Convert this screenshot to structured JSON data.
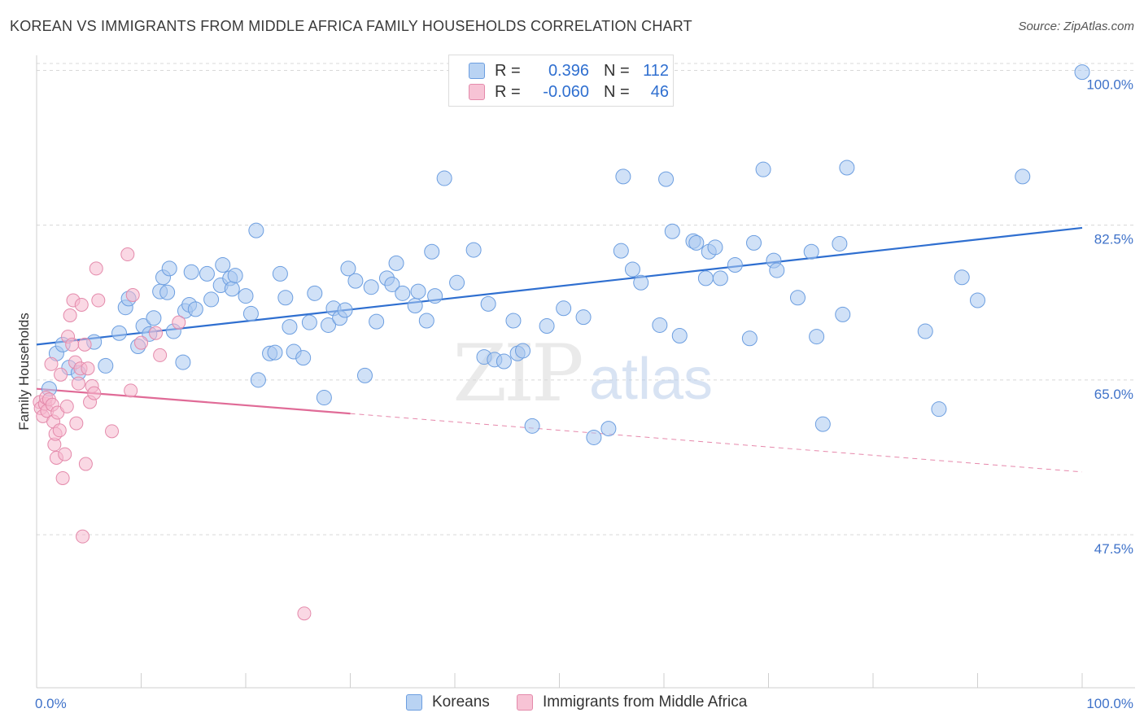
{
  "title": "KOREAN VS IMMIGRANTS FROM MIDDLE AFRICA FAMILY HOUSEHOLDS CORRELATION CHART",
  "source": "Source: ZipAtlas.com",
  "watermark": {
    "zip": "ZIP",
    "atlas": "atlas"
  },
  "legend": {
    "rows": [
      {
        "r_label": "R =",
        "r_value": "0.396",
        "n_label": "N =",
        "n_value": "112"
      },
      {
        "r_label": "R =",
        "r_value": "-0.060",
        "n_label": "N =",
        "n_value": "46"
      }
    ]
  },
  "bottom_legend": [
    "Koreans",
    "Immigrants from Middle Africa"
  ],
  "colors": {
    "blue": "#2f6fd0",
    "pink": "#e06b97",
    "blue_fill": "#a9c8f0",
    "pink_fill": "#f5b8cd",
    "grid": "#d8d8d8"
  },
  "chart_data": {
    "type": "scatter",
    "xlabel": "",
    "ylabel": "Family Households",
    "xlim": [
      0,
      100
    ],
    "ylim": [
      30.2,
      101.7
    ],
    "x_tick_labels": [
      "0.0%",
      "100.0%"
    ],
    "y_ticks": [
      47.5,
      65.0,
      82.5,
      100.0
    ],
    "y_tick_labels": [
      "47.5%",
      "65.0%",
      "82.5%",
      "100.0%"
    ],
    "grid": true,
    "legend_position": "top-center",
    "series": [
      {
        "name": "Koreans",
        "trend": {
          "x0": 0,
          "y0": 69.0,
          "x1": 100,
          "y1": 82.2
        },
        "points": [
          [
            1.2,
            64.0
          ],
          [
            1.9,
            68.0
          ],
          [
            2.5,
            69.0
          ],
          [
            3.1,
            66.4
          ],
          [
            4.0,
            65.8
          ],
          [
            5.5,
            69.3
          ],
          [
            6.6,
            66.6
          ],
          [
            7.9,
            70.3
          ],
          [
            8.5,
            73.2
          ],
          [
            8.8,
            74.2
          ],
          [
            9.7,
            68.8
          ],
          [
            10.2,
            71.1
          ],
          [
            10.8,
            70.2
          ],
          [
            11.2,
            72.0
          ],
          [
            11.8,
            75.0
          ],
          [
            12.1,
            76.6
          ],
          [
            12.5,
            74.9
          ],
          [
            12.7,
            77.6
          ],
          [
            13.1,
            70.5
          ],
          [
            14.0,
            67.0
          ],
          [
            14.2,
            72.8
          ],
          [
            14.6,
            73.5
          ],
          [
            14.8,
            77.2
          ],
          [
            15.2,
            73.0
          ],
          [
            16.3,
            77.0
          ],
          [
            16.7,
            74.1
          ],
          [
            17.6,
            75.7
          ],
          [
            17.8,
            78.0
          ],
          [
            18.5,
            76.5
          ],
          [
            18.7,
            75.3
          ],
          [
            19.0,
            76.8
          ],
          [
            20.0,
            74.5
          ],
          [
            20.5,
            72.5
          ],
          [
            21.0,
            81.9
          ],
          [
            21.2,
            65.0
          ],
          [
            22.3,
            68.0
          ],
          [
            22.8,
            68.1
          ],
          [
            23.3,
            77.0
          ],
          [
            23.8,
            74.3
          ],
          [
            24.2,
            71.0
          ],
          [
            24.6,
            68.2
          ],
          [
            25.5,
            67.5
          ],
          [
            26.1,
            71.5
          ],
          [
            26.6,
            74.8
          ],
          [
            27.5,
            63.0
          ],
          [
            27.9,
            71.2
          ],
          [
            28.4,
            73.1
          ],
          [
            29.0,
            72.0
          ],
          [
            29.5,
            72.9
          ],
          [
            29.8,
            77.6
          ],
          [
            30.5,
            76.2
          ],
          [
            31.4,
            65.5
          ],
          [
            32.0,
            75.5
          ],
          [
            32.5,
            71.6
          ],
          [
            33.5,
            76.5
          ],
          [
            34.0,
            75.8
          ],
          [
            34.4,
            78.2
          ],
          [
            35.0,
            74.8
          ],
          [
            36.2,
            73.4
          ],
          [
            36.5,
            75.0
          ],
          [
            37.3,
            71.7
          ],
          [
            37.8,
            79.5
          ],
          [
            38.1,
            74.5
          ],
          [
            39.0,
            87.8
          ],
          [
            40.2,
            76.0
          ],
          [
            41.8,
            79.7
          ],
          [
            42.8,
            67.6
          ],
          [
            43.2,
            73.6
          ],
          [
            43.8,
            67.3
          ],
          [
            44.7,
            67.1
          ],
          [
            45.6,
            71.7
          ],
          [
            46.0,
            68.0
          ],
          [
            46.5,
            68.3
          ],
          [
            47.4,
            59.8
          ],
          [
            48.8,
            71.1
          ],
          [
            50.4,
            73.1
          ],
          [
            52.3,
            72.1
          ],
          [
            53.3,
            58.5
          ],
          [
            54.7,
            59.5
          ],
          [
            55.9,
            79.6
          ],
          [
            56.1,
            88.0
          ],
          [
            57.0,
            77.5
          ],
          [
            57.8,
            76.0
          ],
          [
            59.6,
            71.2
          ],
          [
            60.2,
            87.7
          ],
          [
            60.8,
            81.8
          ],
          [
            61.5,
            70.0
          ],
          [
            62.8,
            80.7
          ],
          [
            63.1,
            80.5
          ],
          [
            64.0,
            76.5
          ],
          [
            64.3,
            79.5
          ],
          [
            64.9,
            80.0
          ],
          [
            65.4,
            76.5
          ],
          [
            66.8,
            78.0
          ],
          [
            68.2,
            69.7
          ],
          [
            68.6,
            80.5
          ],
          [
            69.5,
            88.8
          ],
          [
            70.5,
            78.5
          ],
          [
            70.8,
            77.4
          ],
          [
            72.8,
            74.3
          ],
          [
            74.1,
            79.5
          ],
          [
            74.6,
            69.9
          ],
          [
            75.2,
            60.0
          ],
          [
            76.8,
            80.4
          ],
          [
            77.1,
            72.4
          ],
          [
            77.5,
            89.0
          ],
          [
            85.0,
            70.5
          ],
          [
            86.3,
            61.7
          ],
          [
            88.5,
            76.6
          ],
          [
            90.0,
            74.0
          ],
          [
            94.3,
            88.0
          ],
          [
            100.0,
            99.8
          ]
        ]
      },
      {
        "name": "Immigrants from Middle Africa",
        "trend": {
          "x0": 0,
          "y0": 64.0,
          "x1": 30,
          "y1": 61.2
        },
        "trend_dashed": {
          "x0": 30,
          "y0": 61.2,
          "x1": 100,
          "y1": 54.6
        },
        "points": [
          [
            0.3,
            62.5
          ],
          [
            0.4,
            61.8
          ],
          [
            0.6,
            60.9
          ],
          [
            0.8,
            62.3
          ],
          [
            0.9,
            63.0
          ],
          [
            1.0,
            61.5
          ],
          [
            1.2,
            62.8
          ],
          [
            1.4,
            66.8
          ],
          [
            1.5,
            62.2
          ],
          [
            1.6,
            60.3
          ],
          [
            1.7,
            57.7
          ],
          [
            1.8,
            58.9
          ],
          [
            1.9,
            56.2
          ],
          [
            2.0,
            61.3
          ],
          [
            2.2,
            59.3
          ],
          [
            2.3,
            65.6
          ],
          [
            2.5,
            53.9
          ],
          [
            2.7,
            56.6
          ],
          [
            2.9,
            62.0
          ],
          [
            3.0,
            69.9
          ],
          [
            3.2,
            72.3
          ],
          [
            3.4,
            69.0
          ],
          [
            3.5,
            74.0
          ],
          [
            3.7,
            67.0
          ],
          [
            3.8,
            60.1
          ],
          [
            4.0,
            64.6
          ],
          [
            4.2,
            66.3
          ],
          [
            4.3,
            73.5
          ],
          [
            4.4,
            47.3
          ],
          [
            4.6,
            69.0
          ],
          [
            4.7,
            55.5
          ],
          [
            4.9,
            66.3
          ],
          [
            5.1,
            62.5
          ],
          [
            5.3,
            64.3
          ],
          [
            5.5,
            63.5
          ],
          [
            5.7,
            77.6
          ],
          [
            5.9,
            74.0
          ],
          [
            7.2,
            59.2
          ],
          [
            8.7,
            79.2
          ],
          [
            9.0,
            63.8
          ],
          [
            9.2,
            74.6
          ],
          [
            10.0,
            69.2
          ],
          [
            11.4,
            70.3
          ],
          [
            11.8,
            67.8
          ],
          [
            13.6,
            71.5
          ],
          [
            25.6,
            38.6
          ]
        ]
      }
    ]
  }
}
